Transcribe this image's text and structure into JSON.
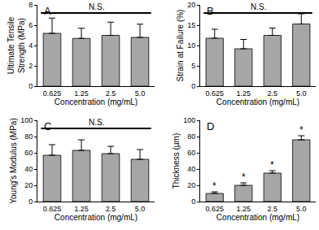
{
  "chart_data": [
    {
      "type": "bar",
      "panel": "A",
      "categories": [
        "0.625",
        "1.25",
        "2.5",
        "5.0"
      ],
      "values": [
        5.2,
        4.7,
        5.0,
        4.8
      ],
      "errors": [
        1.5,
        1.0,
        1.3,
        1.3
      ],
      "xlabel": "Concentration (mg/mL)",
      "ylabel": "Ultimate Tensile Strength (MPa)",
      "ylim": [
        0,
        8
      ],
      "yticks": [
        0,
        2,
        4,
        6,
        8
      ],
      "color": "#a6a6a6",
      "annotation": "N.S."
    },
    {
      "type": "bar",
      "panel": "B",
      "categories": [
        "0.625",
        "1.25",
        "2.5",
        "5.0"
      ],
      "values": [
        11.8,
        9.2,
        12.5,
        15.3
      ],
      "errors": [
        2.2,
        2.3,
        1.8,
        2.5
      ],
      "xlabel": "Concentration (mg/mL)",
      "ylabel": "Strain at Failure (%)",
      "ylim": [
        0,
        20
      ],
      "yticks": [
        0,
        5,
        10,
        15,
        20
      ],
      "color": "#a6a6a6",
      "annotation": "N.S."
    },
    {
      "type": "bar",
      "panel": "C",
      "categories": [
        "0.625",
        "1.25",
        "2.5",
        "5.0"
      ],
      "values": [
        57,
        63,
        59,
        52
      ],
      "errors": [
        13,
        13,
        9,
        12
      ],
      "xlabel": "Concentration (mg/mL)",
      "ylabel": "Young's Modulus (MPa)",
      "ylim": [
        0,
        100
      ],
      "yticks": [
        0,
        20,
        40,
        60,
        80,
        100
      ],
      "color": "#a6a6a6",
      "annotation": "N.S."
    },
    {
      "type": "bar",
      "panel": "D",
      "categories": [
        "0.625",
        "1.25",
        "2.5",
        "5.0"
      ],
      "values": [
        10,
        20,
        35,
        76
      ],
      "errors": [
        2,
        3,
        3,
        5
      ],
      "xlabel": "Concentration (mg/mL)",
      "ylabel": "Thickness (µm)",
      "ylim": [
        0,
        100
      ],
      "yticks": [
        0,
        20,
        40,
        60,
        80,
        100
      ],
      "color": "#a6a6a6",
      "bar_annotations": [
        "*",
        "*",
        "*",
        "*"
      ]
    }
  ]
}
